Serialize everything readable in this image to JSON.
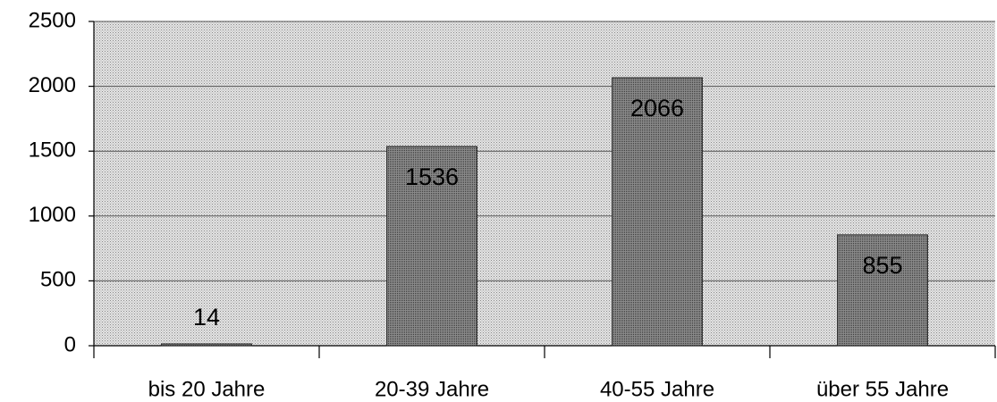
{
  "chart_data": {
    "type": "bar",
    "categories": [
      "bis 20 Jahre",
      "20-39 Jahre",
      "40-55 Jahre",
      "über 55 Jahre"
    ],
    "values": [
      14,
      1536,
      2066,
      855
    ],
    "color": "#6a6a6a",
    "ylim": [
      0,
      2500
    ],
    "yticks": [
      0,
      500,
      1000,
      1500,
      2000,
      2500
    ],
    "grid": true
  }
}
